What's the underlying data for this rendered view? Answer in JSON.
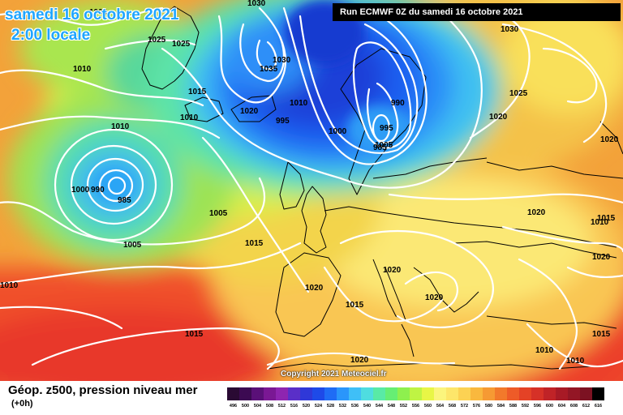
{
  "header": {
    "date_title": "samedi 16 octobre 2021",
    "time_title": "2:00 locale",
    "run_info": "Run ECMWF 0Z du samedi 16 octobre 2021"
  },
  "footer": {
    "copyright": "Copyright 2021 Meteociel.fr",
    "legend_title": "Géop. z500, pression niveau mer",
    "legend_subtitle": "(+0h)"
  },
  "colorbar": {
    "labels": [
      "496",
      "500",
      "504",
      "508",
      "512",
      "516",
      "520",
      "524",
      "528",
      "532",
      "536",
      "540",
      "544",
      "548",
      "552",
      "556",
      "560",
      "564",
      "568",
      "572",
      "576",
      "580",
      "584",
      "588",
      "592",
      "596",
      "600",
      "604",
      "608",
      "612",
      "616"
    ],
    "colors": [
      "#2a0a33",
      "#3c0a52",
      "#5a1078",
      "#7a1894",
      "#8e25b0",
      "#5a2fc8",
      "#2f38d8",
      "#1e4ae8",
      "#1f6cf5",
      "#2a96fb",
      "#3fbff7",
      "#4fdde0",
      "#59eaa6",
      "#66ee74",
      "#8ef04e",
      "#bff443",
      "#e8f646",
      "#fbf57d",
      "#fde66a",
      "#fcd253",
      "#f9b83e",
      "#f69a33",
      "#f2792b",
      "#ee5b28",
      "#e44226",
      "#d63127",
      "#c02327",
      "#a81a26",
      "#931625",
      "#7c1222",
      "#000000"
    ]
  },
  "isobar_labels": [
    "1000",
    "1030",
    "1025",
    "1025",
    "1010",
    "1015",
    "1010",
    "1010",
    "1030",
    "1035",
    "1020",
    "1010",
    "995",
    "1000",
    "990",
    "995",
    "985",
    "1005",
    "1030",
    "1025",
    "1020",
    "1020",
    "1000",
    "990",
    "985",
    "1005",
    "1005",
    "1015",
    "1020",
    "1020",
    "1015",
    "1020",
    "1015",
    "1010",
    "1010",
    "1010",
    "1020",
    "1015",
    "1010",
    "1015",
    "1020",
    "1020"
  ]
}
